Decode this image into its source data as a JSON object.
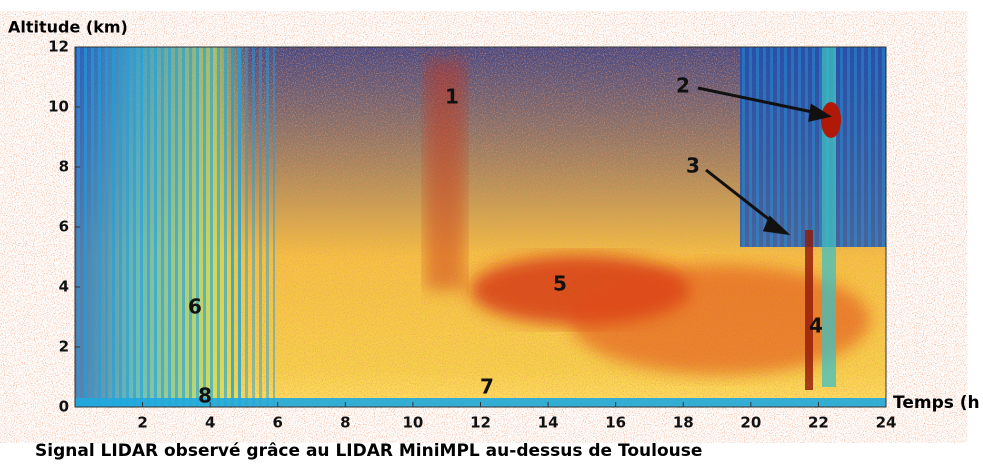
{
  "chart_data": {
    "type": "heatmap",
    "y_label": "Altitude (km)",
    "x_label": "Temps (h",
    "caption": "Signal LIDAR observé grâce au LIDAR MiniMPL au-dessus de Toulouse",
    "xlim": [
      0,
      24
    ],
    "xticks": [
      2,
      4,
      6,
      8,
      10,
      12,
      14,
      16,
      18,
      20,
      22,
      24
    ],
    "ylim": [
      0,
      12
    ],
    "yticks": [
      0,
      2,
      4,
      6,
      8,
      10,
      12
    ],
    "annotations": [
      "1",
      "2",
      "3",
      "4",
      "5",
      "6",
      "7",
      "8"
    ]
  }
}
